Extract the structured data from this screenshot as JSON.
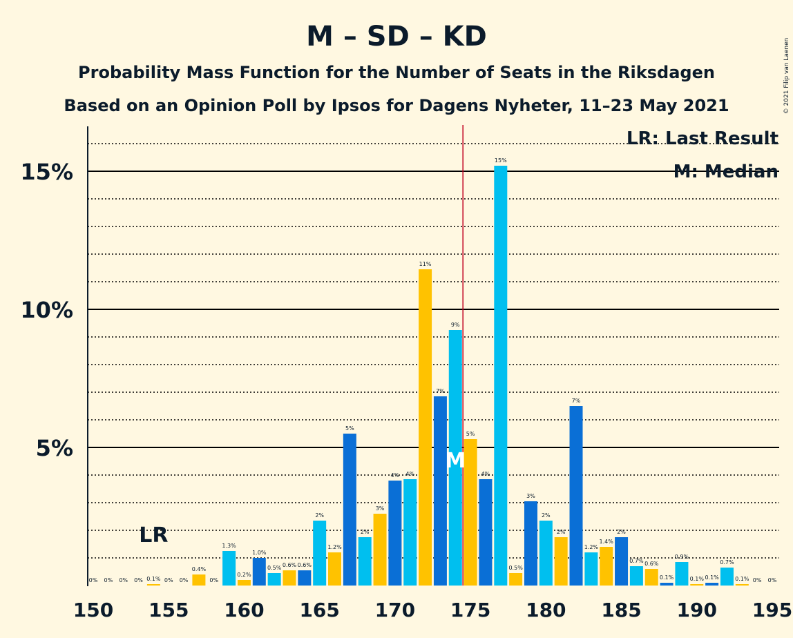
{
  "chart_data": {
    "type": "bar",
    "title": "M – SD – KD",
    "subtitle": "Probability Mass Function for the Number of Seats in the Riksdagen",
    "subtitle2": "Based on an Opinion Poll by Ipsos for Dagens Nyheter, 11–23 May 2021",
    "copyright": "© 2021 Filip van Laenen",
    "legend": {
      "lr": "LR: Last Result",
      "m": "M: Median",
      "placement": "top-right"
    },
    "last_result": {
      "seat": 154,
      "label": "LR"
    },
    "median": {
      "seat": 174,
      "label": "M"
    },
    "majority_line": 175,
    "xlim": [
      150,
      195
    ],
    "ylim": [
      0,
      16.5
    ],
    "y_ticks": [
      {
        "value": 5,
        "label": "5%"
      },
      {
        "value": 10,
        "label": "10%"
      },
      {
        "value": 15,
        "label": "15%"
      }
    ],
    "x_ticks": [
      {
        "value": 150,
        "label": "150"
      },
      {
        "value": 155,
        "label": "155"
      },
      {
        "value": 160,
        "label": "160"
      },
      {
        "value": 165,
        "label": "165"
      },
      {
        "value": 170,
        "label": "170"
      },
      {
        "value": 175,
        "label": "175"
      },
      {
        "value": 180,
        "label": "180"
      },
      {
        "value": 185,
        "label": "185"
      },
      {
        "value": 190,
        "label": "190"
      },
      {
        "value": 195,
        "label": "195"
      }
    ],
    "colors": {
      "blue": "#0a6fd6",
      "cyan": "#00bfef",
      "yellow": "#ffc200",
      "majority": "#c00020",
      "grid": "#000000"
    },
    "bars": [
      {
        "seat": 150,
        "value": 0,
        "label": "0%",
        "color": "cyan"
      },
      {
        "seat": 151,
        "value": 0,
        "label": "0%",
        "color": "yellow"
      },
      {
        "seat": 152,
        "value": 0,
        "label": "0%",
        "color": "blue"
      },
      {
        "seat": 153,
        "value": 0,
        "label": "0%",
        "color": "cyan"
      },
      {
        "seat": 154,
        "value": 0.05,
        "label": "0.1%",
        "color": "yellow"
      },
      {
        "seat": 155,
        "value": 0,
        "label": "0%",
        "color": "blue"
      },
      {
        "seat": 156,
        "value": 0,
        "label": "0%",
        "color": "cyan"
      },
      {
        "seat": 157,
        "value": 0.4,
        "label": "0.4%",
        "color": "yellow"
      },
      {
        "seat": 158,
        "value": 0,
        "label": "0%",
        "color": "blue"
      },
      {
        "seat": 159,
        "value": 1.25,
        "label": "1.3%",
        "color": "cyan"
      },
      {
        "seat": 160,
        "value": 0.2,
        "label": "0.2%",
        "color": "yellow"
      },
      {
        "seat": 161,
        "value": 1.0,
        "label": "1.0%",
        "color": "blue"
      },
      {
        "seat": 162,
        "value": 0.45,
        "label": "0.5%",
        "color": "cyan"
      },
      {
        "seat": 163,
        "value": 0.55,
        "label": "0.6%",
        "color": "yellow"
      },
      {
        "seat": 164,
        "value": 0.55,
        "label": "0.6%",
        "color": "blue"
      },
      {
        "seat": 165,
        "value": 2.35,
        "label": "2%",
        "color": "cyan"
      },
      {
        "seat": 166,
        "value": 1.2,
        "label": "1.2%",
        "color": "yellow"
      },
      {
        "seat": 167,
        "value": 5.5,
        "label": "5%",
        "color": "blue"
      },
      {
        "seat": 168,
        "value": 1.75,
        "label": "2%",
        "color": "cyan"
      },
      {
        "seat": 169,
        "value": 2.6,
        "label": "3%",
        "color": "yellow"
      },
      {
        "seat": 170,
        "value": 3.8,
        "label": "4%",
        "color": "blue"
      },
      {
        "seat": 171,
        "value": 3.85,
        "label": "4%",
        "color": "cyan"
      },
      {
        "seat": 172,
        "value": 11.45,
        "label": "11%",
        "color": "yellow"
      },
      {
        "seat": 173,
        "value": 6.85,
        "label": "7%",
        "color": "blue"
      },
      {
        "seat": 174,
        "value": 9.25,
        "label": "9%",
        "color": "cyan"
      },
      {
        "seat": 175,
        "value": 5.3,
        "label": "5%",
        "color": "yellow"
      },
      {
        "seat": 176,
        "value": 3.85,
        "label": "4%",
        "color": "blue"
      },
      {
        "seat": 177,
        "value": 15.2,
        "label": "15%",
        "color": "cyan"
      },
      {
        "seat": 178,
        "value": 0.45,
        "label": "0.5%",
        "color": "yellow"
      },
      {
        "seat": 179,
        "value": 3.05,
        "label": "3%",
        "color": "blue"
      },
      {
        "seat": 180,
        "value": 2.35,
        "label": "2%",
        "color": "cyan"
      },
      {
        "seat": 181,
        "value": 1.75,
        "label": "2%",
        "color": "yellow"
      },
      {
        "seat": 182,
        "value": 6.5,
        "label": "7%",
        "color": "blue"
      },
      {
        "seat": 183,
        "value": 1.2,
        "label": "1.2%",
        "color": "cyan"
      },
      {
        "seat": 184,
        "value": 1.4,
        "label": "1.4%",
        "color": "yellow"
      },
      {
        "seat": 185,
        "value": 1.75,
        "label": "2%",
        "color": "blue"
      },
      {
        "seat": 186,
        "value": 0.7,
        "label": "0.7%",
        "color": "cyan"
      },
      {
        "seat": 187,
        "value": 0.6,
        "label": "0.6%",
        "color": "yellow"
      },
      {
        "seat": 188,
        "value": 0.1,
        "label": "0.1%",
        "color": "blue"
      },
      {
        "seat": 189,
        "value": 0.85,
        "label": "0.9%",
        "color": "cyan"
      },
      {
        "seat": 190,
        "value": 0.05,
        "label": "0.1%",
        "color": "yellow"
      },
      {
        "seat": 191,
        "value": 0.1,
        "label": "0.1%",
        "color": "blue"
      },
      {
        "seat": 192,
        "value": 0.65,
        "label": "0.7%",
        "color": "cyan"
      },
      {
        "seat": 193,
        "value": 0.05,
        "label": "0.1%",
        "color": "yellow"
      },
      {
        "seat": 194,
        "value": 0,
        "label": "0%",
        "color": "blue"
      },
      {
        "seat": 195,
        "value": 0,
        "label": "0%",
        "color": "cyan"
      }
    ]
  }
}
